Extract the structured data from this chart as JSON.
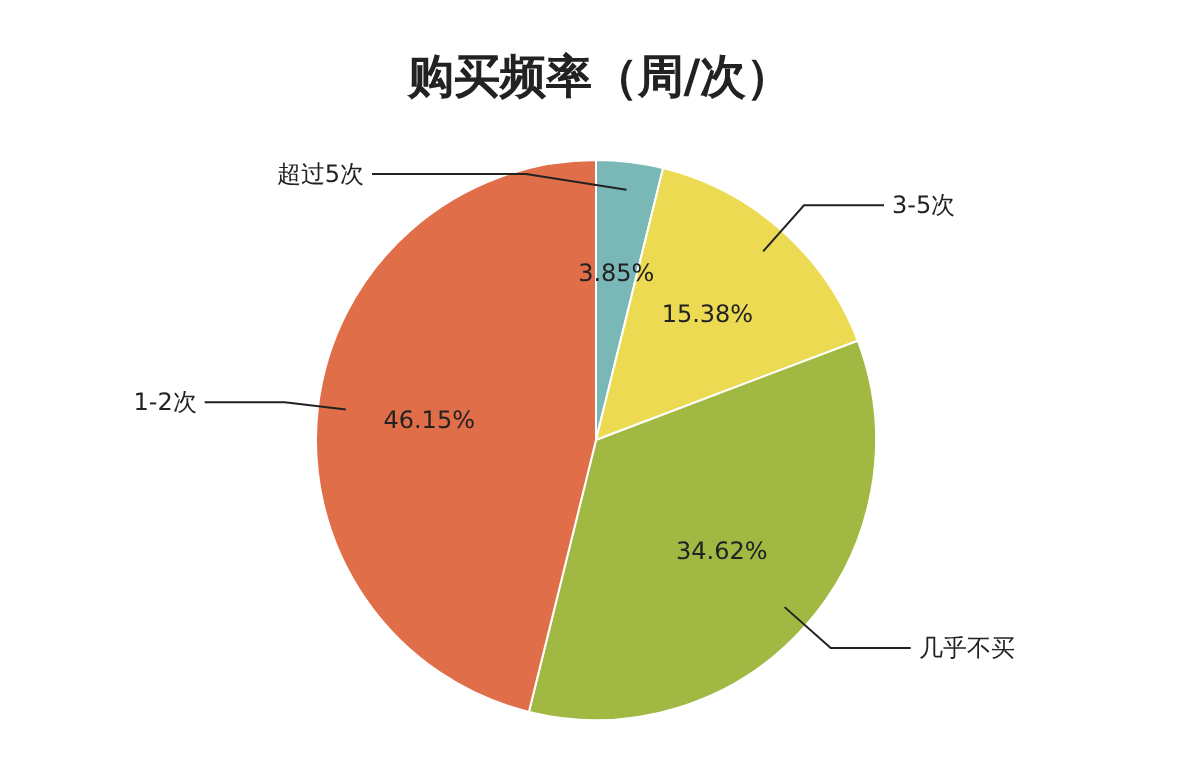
{
  "chart_data": {
    "type": "pie",
    "title": "购买频率（周/次）",
    "categories": [
      "超过5次",
      "3-5次",
      "几乎不买",
      "1-2次"
    ],
    "values": [
      3.85,
      15.38,
      34.62,
      46.15
    ],
    "colors": [
      "#7ab8b8",
      "#ecdb52",
      "#a1b942",
      "#e06e48"
    ],
    "value_labels": [
      "3.85%",
      "15.38%",
      "34.62%",
      "46.15%"
    ]
  }
}
